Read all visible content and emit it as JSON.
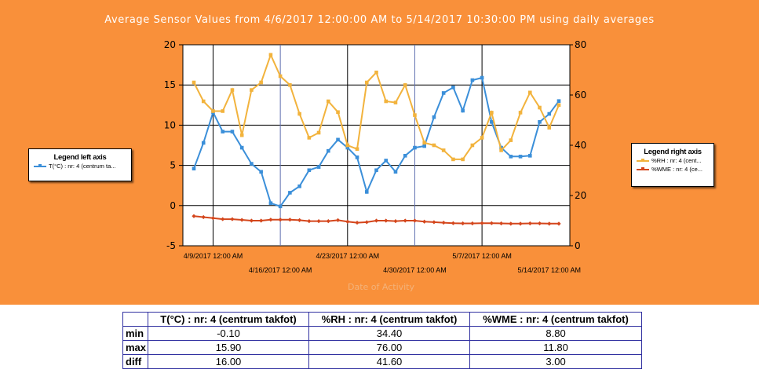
{
  "chart_data": {
    "type": "line",
    "title": "Average Sensor Values from 4/6/2017 12:00:00 AM to 5/14/2017 10:30:00 PM using daily averages",
    "xlabel": "Date of Activity",
    "x_start": "4/7/2017",
    "x_end": "5/14/2017",
    "x_ticks_upper": [
      "4/9/2017 12:00 AM",
      "4/23/2017 12:00 AM",
      "5/7/2017 12:00 AM"
    ],
    "x_ticks_lower": [
      "4/16/2017 12:00 AM",
      "4/30/2017 12:00 AM",
      "5/14/2017 12:00 AM"
    ],
    "y_left": {
      "min": -5,
      "max": 20,
      "ticks": [
        "20",
        "15",
        "10",
        "5",
        "0",
        "-5"
      ]
    },
    "y_right": {
      "min": 0,
      "max": 80,
      "ticks": [
        "80",
        "60",
        "40",
        "20",
        "0"
      ]
    },
    "grid": true,
    "series": [
      {
        "name": "T(°C) : nr: 4 (centrum takfot)",
        "axis": "left",
        "color": "#3b8fd9",
        "values": [
          4.6,
          7.8,
          11.6,
          9.2,
          9.2,
          7.2,
          5.2,
          4.2,
          0.3,
          -0.1,
          1.6,
          2.4,
          4.4,
          4.8,
          6.8,
          8.2,
          7.2,
          6.0,
          1.7,
          4.4,
          5.6,
          4.2,
          6.2,
          7.2,
          7.4,
          11.0,
          14.0,
          14.7,
          11.8,
          15.6,
          15.9,
          10.4,
          7.2,
          6.1,
          6.1,
          6.2,
          10.4,
          11.4,
          13.0
        ]
      },
      {
        "name": "%RH : nr: 4 (centrum takfot)",
        "axis": "right",
        "color": "#f2b33d",
        "values": [
          65.0,
          57.5,
          53.6,
          53.6,
          62.0,
          44.0,
          62.0,
          65.0,
          76.0,
          67.5,
          64.0,
          52.5,
          43.0,
          45.0,
          57.5,
          53.2,
          40.0,
          38.5,
          65.0,
          69.0,
          57.5,
          57.0,
          64.0,
          52.0,
          41.0,
          40.0,
          38.0,
          34.4,
          34.4,
          40.0,
          43.0,
          53.0,
          38.0,
          42.0,
          53.0,
          61.0,
          55.0,
          47.0,
          56.0
        ]
      },
      {
        "name": "%WME : nr: 4 (centrum takfot)",
        "axis": "right",
        "color": "#d4461c",
        "values": [
          11.8,
          11.4,
          11.0,
          10.6,
          10.6,
          10.3,
          10.0,
          10.0,
          10.4,
          10.4,
          10.4,
          10.2,
          9.8,
          9.8,
          9.8,
          10.2,
          9.6,
          9.2,
          9.4,
          10.0,
          10.0,
          9.8,
          10.0,
          10.0,
          9.6,
          9.4,
          9.2,
          9.0,
          8.9,
          8.9,
          9.0,
          9.0,
          8.9,
          8.8,
          8.8,
          8.9,
          8.9,
          8.8,
          8.8
        ]
      }
    ]
  },
  "legend_left": {
    "title": "Legend left axis",
    "items": [
      {
        "label": "T(°C) : nr: 4 (centrum ta...",
        "color": "#3b8fd9"
      }
    ]
  },
  "legend_right": {
    "title": "Legend right axis",
    "items": [
      {
        "label": "%RH : nr: 4 (cent...",
        "color": "#f2b33d"
      },
      {
        "label": "%WME : nr: 4 (ce...",
        "color": "#d4461c"
      }
    ]
  },
  "stats_table": {
    "headers": [
      "T(°C) : nr: 4 (centrum takfot)",
      "%RH : nr: 4 (centrum takfot)",
      "%WME : nr: 4 (centrum takfot)"
    ],
    "rows": [
      {
        "label": "min",
        "values": [
          "-0.10",
          "34.40",
          "8.80"
        ]
      },
      {
        "label": "max",
        "values": [
          "15.90",
          "76.00",
          "11.80"
        ]
      },
      {
        "label": "diff",
        "values": [
          "16.00",
          "41.60",
          "3.00"
        ]
      }
    ]
  }
}
